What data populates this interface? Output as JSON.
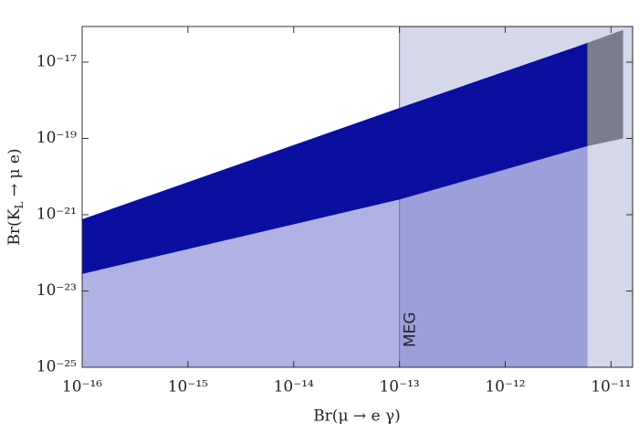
{
  "chart_data": {
    "type": "region",
    "xlabel": "Br(μ → e γ)",
    "ylabel": "Br(K_L → μ e)",
    "xscale": "log",
    "yscale": "log",
    "xlim": [
      1e-16,
      1.6e-11
    ],
    "ylim": [
      1e-25,
      8.6e-17
    ],
    "xticks": [
      {
        "value": 1e-16,
        "label": "10⁻¹⁶"
      },
      {
        "value": 1e-15,
        "label": "10⁻¹⁵"
      },
      {
        "value": 1e-14,
        "label": "10⁻¹⁴"
      },
      {
        "value": 1e-13,
        "label": "10⁻¹³"
      },
      {
        "value": 1e-12,
        "label": "10⁻¹²"
      },
      {
        "value": 1e-11,
        "label": "10⁻¹¹"
      }
    ],
    "yticks": [
      {
        "value": 1e-25,
        "label": "10⁻²⁵"
      },
      {
        "value": 1e-23,
        "label": "10⁻²³"
      },
      {
        "value": 1e-21,
        "label": "10⁻²¹"
      },
      {
        "value": 1e-19,
        "label": "10⁻¹⁹"
      },
      {
        "value": 1e-17,
        "label": "10⁻¹⁷"
      }
    ],
    "shaded": {
      "label": "MEG",
      "xrange": [
        1e-13,
        1.6e-11
      ],
      "color": "#d5d7ea",
      "edge": "#7a82b4"
    },
    "regions": [
      {
        "color": "#6d72cc",
        "opacity": 0.55,
        "x": [
          1e-16,
          1e-13,
          6e-12,
          6e-12,
          1e-16
        ],
        "y": [
          2.8e-23,
          2.5e-21,
          6.3e-20,
          1e-25,
          1e-25
        ]
      },
      {
        "color": "#0a0fa0",
        "opacity": 1,
        "x": [
          1e-16,
          1e-13,
          6e-12,
          6e-12,
          1e-13,
          1e-16
        ],
        "y": [
          7.6e-22,
          6.3e-19,
          3.2e-17,
          6.3e-20,
          2.5e-21,
          2.8e-23
        ]
      },
      {
        "color": "#7b7d8c",
        "opacity": 1,
        "x": [
          6e-12,
          1.3e-11,
          1.3e-11,
          6e-12
        ],
        "y": [
          3.2e-17,
          7e-17,
          1e-19,
          6.3e-20
        ]
      }
    ]
  }
}
